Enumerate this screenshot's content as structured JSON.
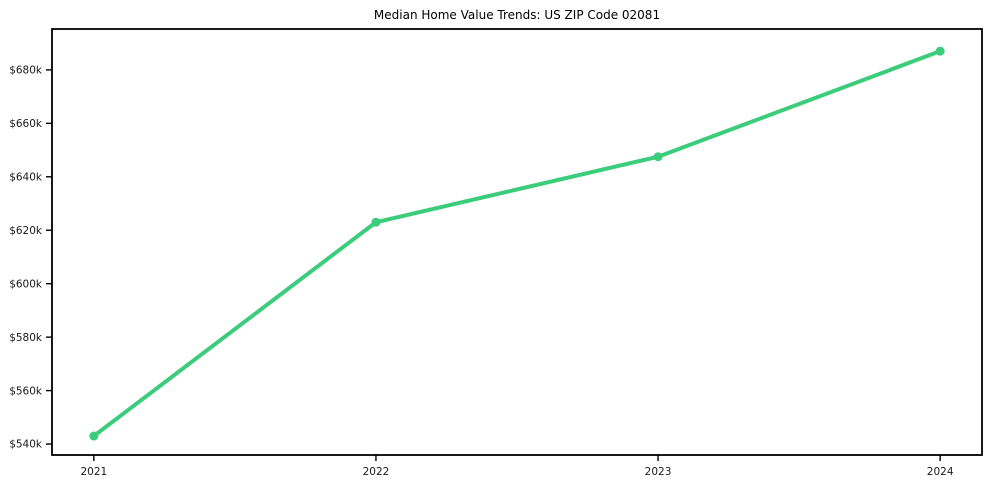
{
  "chart_data": {
    "type": "line",
    "title": "Median Home Value Trends: US ZIP Code 02081",
    "xlabel": "",
    "ylabel": "",
    "categories": [
      "2021",
      "2022",
      "2023",
      "2024"
    ],
    "series": [
      {
        "name": "Median Home Value",
        "values": [
          543000,
          623000,
          647500,
          687000
        ]
      }
    ],
    "y_ticks": [
      {
        "value": 540000,
        "label": "$540k"
      },
      {
        "value": 560000,
        "label": "$560k"
      },
      {
        "value": 580000,
        "label": "$580k"
      },
      {
        "value": 600000,
        "label": "$600k"
      },
      {
        "value": 620000,
        "label": "$620k"
      },
      {
        "value": 640000,
        "label": "$640k"
      },
      {
        "value": 660000,
        "label": "$660k"
      },
      {
        "value": 680000,
        "label": "$680k"
      }
    ],
    "ylim": [
      535900,
      695300
    ],
    "x_margin_frac": 0.045,
    "grid": false,
    "legend": "none",
    "line_color": "#3bcd7c",
    "marker": "circle",
    "background_color": "#ffffff",
    "axis_color": "#000000",
    "text_color": "#1a1a1a"
  }
}
